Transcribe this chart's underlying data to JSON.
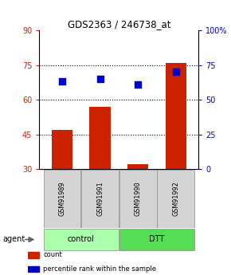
{
  "title": "GDS2363 / 246738_at",
  "samples": [
    "GSM91989",
    "GSM91991",
    "GSM91990",
    "GSM91992"
  ],
  "bar_values": [
    47,
    57,
    32,
    76
  ],
  "percentile_values": [
    63,
    65,
    61,
    70
  ],
  "bar_color": "#cc2200",
  "percentile_color": "#0000cc",
  "ylim_left": [
    30,
    90
  ],
  "ylim_right": [
    0,
    100
  ],
  "yticks_left": [
    30,
    45,
    60,
    75,
    90
  ],
  "yticks_right": [
    0,
    25,
    50,
    75,
    100
  ],
  "ytick_labels_right": [
    "0",
    "25",
    "50",
    "75",
    "100%"
  ],
  "groups": [
    {
      "label": "control",
      "indices": [
        0,
        1
      ],
      "color": "#aaffaa"
    },
    {
      "label": "DTT",
      "indices": [
        2,
        3
      ],
      "color": "#55dd55"
    }
  ],
  "agent_label": "agent",
  "legend_items": [
    {
      "label": "count",
      "color": "#cc2200"
    },
    {
      "label": "percentile rank within the sample",
      "color": "#0000cc"
    }
  ],
  "gridline_yticks": [
    45,
    60,
    75
  ],
  "bar_bottom": 30
}
